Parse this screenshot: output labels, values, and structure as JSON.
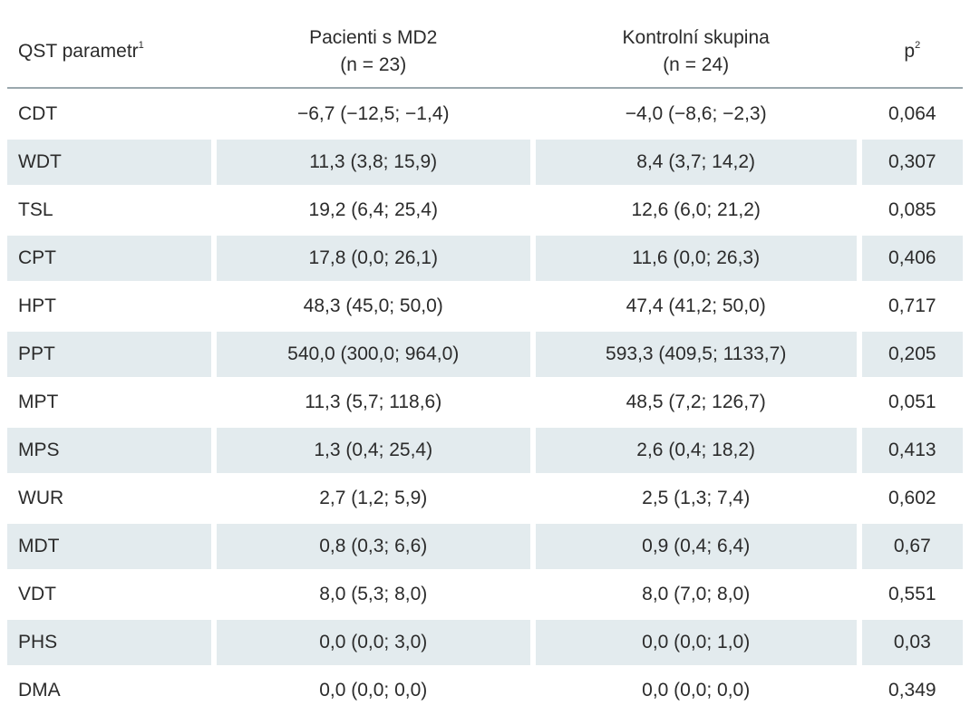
{
  "header": {
    "param": "QST parametr",
    "param_sup": "1",
    "group1_line1": "Pacienti s MD2",
    "group1_line2": "(n = 23)",
    "group2_line1": "Kontrolní skupina",
    "group2_line2": "(n = 24)",
    "p": "p",
    "p_sup": "2"
  },
  "rows": [
    {
      "param": "CDT",
      "md2": "−6,7 (−12,5; −1,4)",
      "control": "−4,0 (−8,6; −2,3)",
      "p": "0,064"
    },
    {
      "param": "WDT",
      "md2": "11,3 (3,8; 15,9)",
      "control": "8,4 (3,7; 14,2)",
      "p": "0,307"
    },
    {
      "param": "TSL",
      "md2": "19,2 (6,4; 25,4)",
      "control": "12,6 (6,0; 21,2)",
      "p": "0,085"
    },
    {
      "param": "CPT",
      "md2": "17,8 (0,0; 26,1)",
      "control": "11,6 (0,0; 26,3)",
      "p": "0,406"
    },
    {
      "param": "HPT",
      "md2": "48,3 (45,0; 50,0)",
      "control": "47,4 (41,2; 50,0)",
      "p": "0,717"
    },
    {
      "param": "PPT",
      "md2": "540,0 (300,0; 964,0)",
      "control": "593,3 (409,5; 1133,7)",
      "p": "0,205"
    },
    {
      "param": "MPT",
      "md2": "11,3 (5,7; 118,6)",
      "control": "48,5 (7,2; 126,7)",
      "p": "0,051"
    },
    {
      "param": "MPS",
      "md2": "1,3 (0,4; 25,4)",
      "control": "2,6 (0,4; 18,2)",
      "p": "0,413"
    },
    {
      "param": "WUR",
      "md2": "2,7 (1,2; 5,9)",
      "control": "2,5 (1,3; 7,4)",
      "p": "0,602"
    },
    {
      "param": "MDT",
      "md2": "0,8 (0,3; 6,6)",
      "control": "0,9 (0,4; 6,4)",
      "p": "0,67"
    },
    {
      "param": "VDT",
      "md2": "8,0 (5,3; 8,0)",
      "control": "8,0 (7,0; 8,0)",
      "p": "0,551"
    },
    {
      "param": "PHS",
      "md2": "0,0 (0,0; 3,0)",
      "control": "0,0 (0,0; 1,0)",
      "p": "0,03"
    },
    {
      "param": "DMA",
      "md2": "0,0 (0,0; 0,0)",
      "control": "0,0 (0,0; 0,0)",
      "p": "0,349"
    }
  ],
  "colors": {
    "shade": "#e3ebee",
    "rule": "#9aa8ad",
    "text": "#2b2b2b"
  }
}
